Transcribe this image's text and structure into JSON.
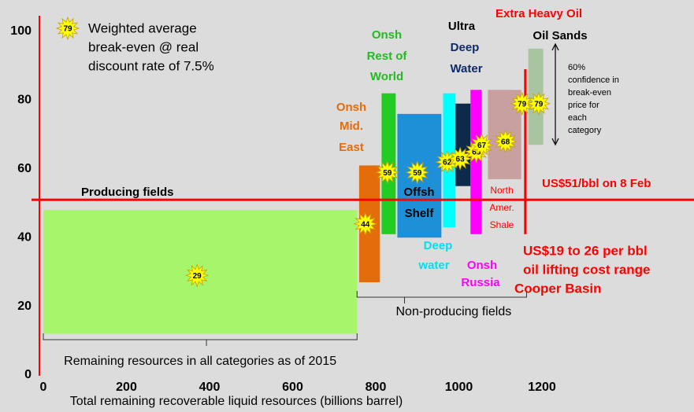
{
  "chart_data": {
    "type": "floating-bar",
    "x_label": "Total remaining recoverable liquid resources (billions barrel)",
    "xlim": [
      0,
      1200
    ],
    "xticks": [
      0,
      200,
      400,
      600,
      800,
      1000,
      1200
    ],
    "ylim": [
      0,
      100
    ],
    "yticks": [
      0,
      20,
      40,
      60,
      80,
      100
    ],
    "grid": false,
    "bars": [
      {
        "label_lines": [
          "Producing fields"
        ],
        "color": "#a6f56a",
        "x": [
          0,
          755
        ],
        "y": [
          12,
          48
        ]
      },
      {
        "label_lines": [
          "Onsh",
          "Mid.",
          "East"
        ],
        "color": "#e46c0a",
        "x": [
          760,
          810
        ],
        "y": [
          27,
          61
        ]
      },
      {
        "label_lines": [
          "Onsh",
          "Rest of",
          "World"
        ],
        "color": "#22cc22",
        "x": [
          814,
          848
        ],
        "y": [
          41,
          82
        ]
      },
      {
        "label_lines": [
          "Offsh",
          "Shelf"
        ],
        "color": "#1e90d8",
        "x": [
          852,
          958
        ],
        "y": [
          40,
          76
        ]
      },
      {
        "label_lines": [
          "Deep",
          "water"
        ],
        "color": "#00ffff",
        "x": [
          962,
          992
        ],
        "y": [
          43,
          82
        ]
      },
      {
        "label_lines": [
          "Ultra",
          "Deep",
          "Water"
        ],
        "color": "#0d2a4a",
        "x": [
          992,
          1028
        ],
        "y": [
          55,
          79
        ]
      },
      {
        "label_lines": [
          "Onsh",
          "Russia"
        ],
        "color": "#ff00ff",
        "x": [
          1028,
          1055
        ],
        "y": [
          41,
          83
        ]
      },
      {
        "label_lines": [
          "North",
          "Amer.",
          "Shale"
        ],
        "color": "#c9a0a0",
        "x": [
          1070,
          1150
        ],
        "y": [
          57,
          83
        ]
      },
      {
        "label_lines": [
          "Extra Heavy Oil"
        ],
        "color": "#ff0000",
        "x": [
          1157,
          1163
        ],
        "y": [
          41,
          89
        ]
      },
      {
        "label_lines": [
          "Oil Sands"
        ],
        "color": "#a9c4a0",
        "x": [
          1167,
          1203
        ],
        "y": [
          67,
          95
        ]
      }
    ],
    "star_color": "#ffff00",
    "stars": {
      "x": [
        370,
        775,
        828,
        900,
        972,
        1003,
        1042,
        1055,
        1112,
        1152,
        1192
      ],
      "values": [
        29,
        44,
        59,
        59,
        62,
        63,
        65,
        67,
        68,
        79,
        79
      ]
    },
    "reference_line": {
      "value": 51,
      "label": "US$51/bbl on 8 Feb",
      "color": "#ff0000"
    },
    "braces": [
      {
        "x": [
          0,
          755
        ],
        "label": "Remaining resources in all categories as of 2015"
      },
      {
        "x": [
          755,
          1163
        ],
        "label": "Non-producing fields"
      }
    ],
    "legend": {
      "star": "79",
      "lines": [
        "Weighted average",
        "break-even @ real",
        "discount rate of 7.5%"
      ]
    },
    "confidence_note": [
      "60%",
      "confidence in",
      "break-even",
      "price for",
      "each",
      "category"
    ],
    "lifting_note": [
      "US$19 to 26 per bbl",
      "oil lifting cost range",
      "Cooper Basin"
    ]
  }
}
